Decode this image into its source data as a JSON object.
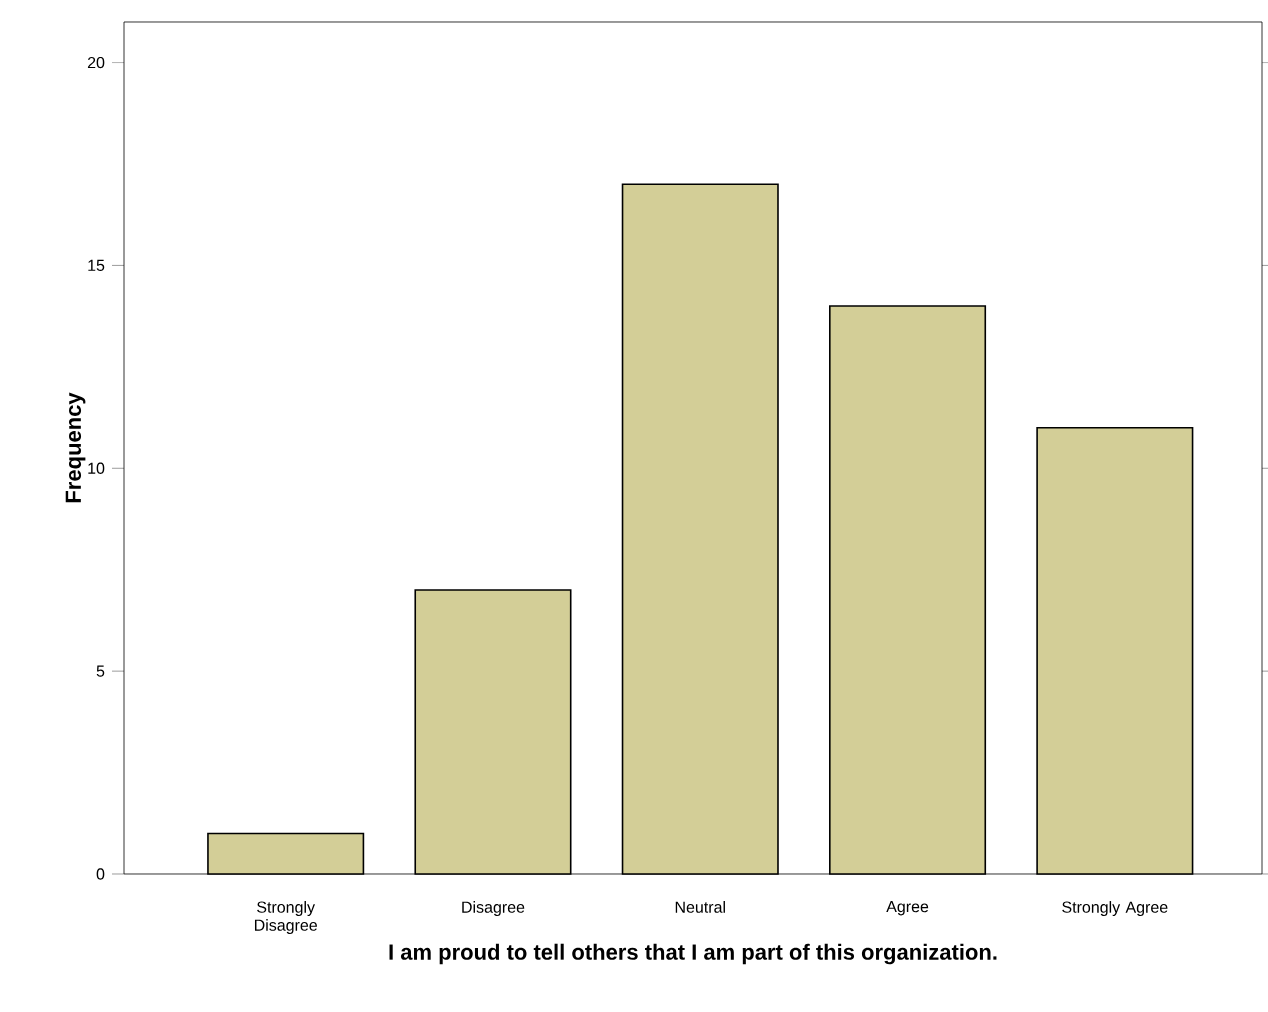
{
  "chart_data": {
    "type": "bar",
    "xlabel": "I am proud to tell others that I am part of this organization.",
    "ylabel": "Frequency",
    "categories": [
      "Strongly Disagree",
      "Disagree",
      "Neutral",
      "Agree",
      "Strongly Agree"
    ],
    "values": [
      1,
      7,
      17,
      14,
      11
    ],
    "color": "#d3ce97",
    "ylim": [
      0,
      21
    ],
    "yticks": [
      0,
      5,
      10,
      15,
      20
    ],
    "grid": false
  }
}
